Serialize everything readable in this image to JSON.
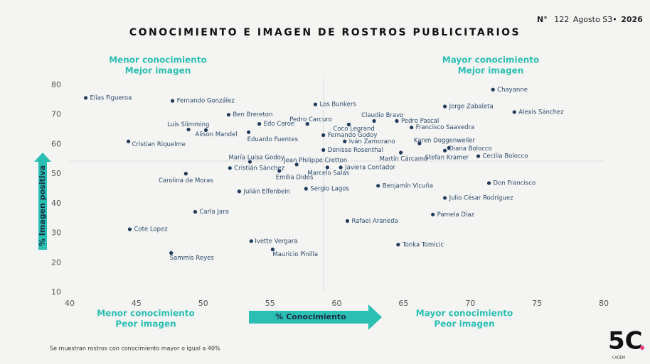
{
  "header": {
    "prefix": "N°",
    "number": "122",
    "period": "Agosto S3•",
    "year": "2026"
  },
  "footnote": "Se muestran rostros con conocimiento mayor o igual a 40%",
  "logo": {
    "mark": "5C",
    "name": "CADEM"
  },
  "chart_data": {
    "type": "scatter",
    "title": "CONOCIMIENTO E IMAGEN DE ROSTROS PUBLICITARIOS",
    "x_label": "% Conocimiento",
    "y_label": "% Imagen positiva",
    "quadrant_labels": {
      "top_left": [
        "Menor conocimiento",
        "Mejor imagen"
      ],
      "top_right": [
        "Mayor conocimiento",
        "Mejor imagen"
      ],
      "bottom_left": [
        "Menor conocimiento",
        "Peor imagen"
      ],
      "bottom_right": [
        "Mayor conocimiento",
        "Peor imagen"
      ]
    },
    "xlim": [
      40,
      80
    ],
    "xticks": [
      40,
      45,
      50,
      55,
      60,
      65,
      70,
      75,
      80
    ],
    "ylim": [
      10,
      80
    ],
    "yticks": [
      10,
      20,
      30,
      40,
      50,
      60,
      70,
      80
    ],
    "color": "#1f3b5c",
    "points": [
      {
        "name": "Elías Figueroa",
        "x": 41.2,
        "y": 75.7
      },
      {
        "name": "Fernando González",
        "x": 47.7,
        "y": 74.7
      },
      {
        "name": "Los Bunkers",
        "x": 58.4,
        "y": 73.5
      },
      {
        "name": "Chayanne",
        "x": 71.7,
        "y": 78.5
      },
      {
        "name": "Jorge Zabaleta",
        "x": 68.1,
        "y": 72.8
      },
      {
        "name": "Alexis Sánchez",
        "x": 73.3,
        "y": 70.9
      },
      {
        "name": "Ben Brereton",
        "x": 51.9,
        "y": 70.0
      },
      {
        "name": "Claudio Bravo",
        "x": 62.8,
        "y": 67.9
      },
      {
        "name": "Pedro Pascal",
        "x": 64.5,
        "y": 67.9
      },
      {
        "name": "Pedro Carcuro",
        "x": 57.8,
        "y": 66.9
      },
      {
        "name": "Edo Caroe",
        "x": 54.2,
        "y": 66.9
      },
      {
        "name": "Coco Legrand",
        "x": 60.9,
        "y": 66.7
      },
      {
        "name": "Francisco Saavedra",
        "x": 65.6,
        "y": 65.7
      },
      {
        "name": "Luis Slimming",
        "x": 48.9,
        "y": 65.0
      },
      {
        "name": "Alison Mandel",
        "x": 50.2,
        "y": 64.8
      },
      {
        "name": "Eduardo Fuentes",
        "x": 53.4,
        "y": 64.1
      },
      {
        "name": "Fernando Godoy",
        "x": 59.0,
        "y": 63.1
      },
      {
        "name": "Iván Zamorano",
        "x": 60.6,
        "y": 61.0
      },
      {
        "name": "Karen Doggenweiler",
        "x": 66.2,
        "y": 60.3
      },
      {
        "name": "Cristian Riquelme",
        "x": 44.4,
        "y": 61.0
      },
      {
        "name": "Diana Bolocco",
        "x": 68.4,
        "y": 58.8
      },
      {
        "name": "Denisse Rosenthal",
        "x": 59.0,
        "y": 58.1
      },
      {
        "name": "Martín Cárcamo",
        "x": 64.8,
        "y": 57.2
      },
      {
        "name": "Stefan Kramer",
        "x": 68.1,
        "y": 57.9
      },
      {
        "name": "Cecilia Bolocco",
        "x": 70.6,
        "y": 56.0
      },
      {
        "name": "María Luisa Godoy",
        "x": 53.5,
        "y": 54.1
      },
      {
        "name": "Jean Philippe Cretton",
        "x": 57.0,
        "y": 53.2
      },
      {
        "name": "Javiera Contador",
        "x": 60.3,
        "y": 52.2
      },
      {
        "name": "Marcelo Salas",
        "x": 59.3,
        "y": 52.2
      },
      {
        "name": "Cristián Sánchez",
        "x": 52.0,
        "y": 52.0
      },
      {
        "name": "Carolina de Moras",
        "x": 48.7,
        "y": 50.1
      },
      {
        "name": "Emilia Dides",
        "x": 55.7,
        "y": 51.0
      },
      {
        "name": "Don Francisco",
        "x": 71.4,
        "y": 46.9
      },
      {
        "name": "Benjamín Vicuña",
        "x": 63.1,
        "y": 46.0
      },
      {
        "name": "Sergio Lagos",
        "x": 57.7,
        "y": 45.0
      },
      {
        "name": "Julián Elfenbein",
        "x": 52.7,
        "y": 44.1
      },
      {
        "name": "Julio César Rodríguez",
        "x": 68.1,
        "y": 41.9
      },
      {
        "name": "Carla Jara",
        "x": 49.4,
        "y": 37.2
      },
      {
        "name": "Pamela Díaz",
        "x": 67.2,
        "y": 36.3
      },
      {
        "name": "Rafael Araneda",
        "x": 60.8,
        "y": 34.1
      },
      {
        "name": "Cote Lopez",
        "x": 44.5,
        "y": 31.3
      },
      {
        "name": "Ivette Vergara",
        "x": 53.6,
        "y": 27.3
      },
      {
        "name": "Tonka Tomicic",
        "x": 64.6,
        "y": 26.1
      },
      {
        "name": "Mauricio Pinilla",
        "x": 55.2,
        "y": 24.5
      },
      {
        "name": "Sammis Reyes",
        "x": 47.6,
        "y": 23.3
      }
    ]
  }
}
